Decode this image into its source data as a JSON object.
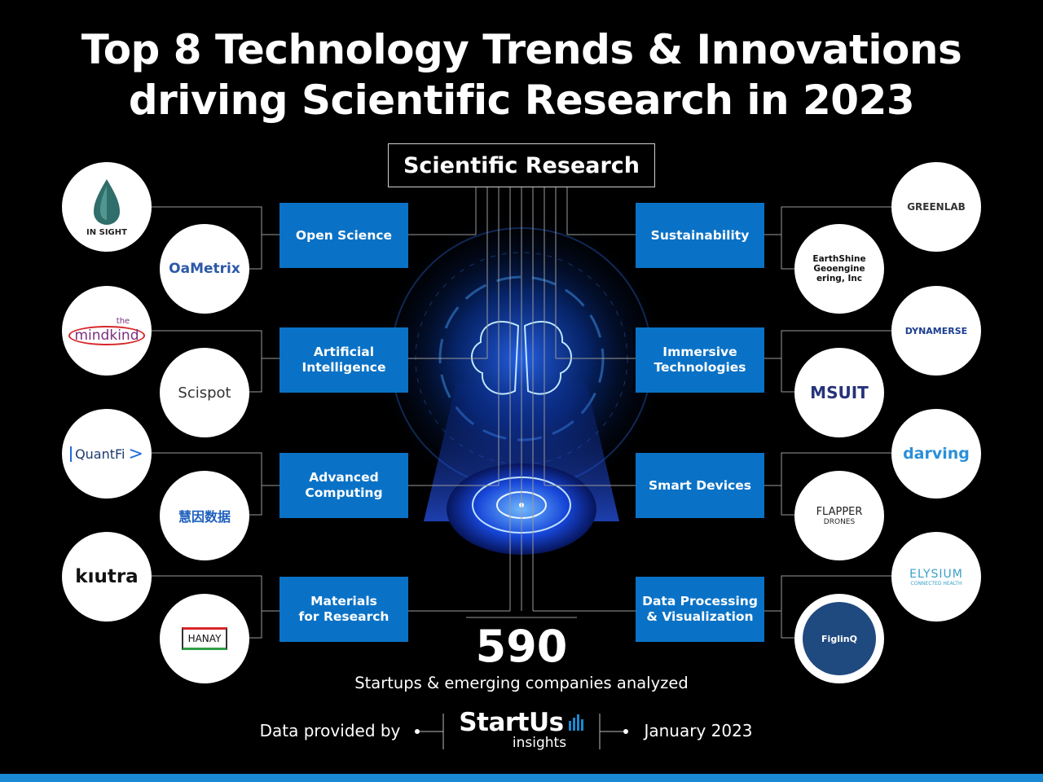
{
  "title": {
    "line1": "Top 8 Technology Trends & Innovations",
    "line2": "driving Scientific Research in 2023"
  },
  "center_label": "Scientific Research",
  "trends": [
    {
      "label": "Open Science"
    },
    {
      "label": "Artificial\nIntelligence"
    },
    {
      "label": "Advanced\nComputing"
    },
    {
      "label": "Materials\nfor Research"
    },
    {
      "label": "Sustainability"
    },
    {
      "label": "Immersive\nTechnologies"
    },
    {
      "label": "Smart Devices"
    },
    {
      "label": "Data Processing\n& Visualization"
    }
  ],
  "logos": {
    "insight": "IN SIGHT",
    "oametrix": "OaMetrix",
    "mindkind_the": "the",
    "mindkind_name": "mindkind",
    "scispot": "Scispot",
    "quantfi": "QuantFi",
    "huiyin": "慧因数据",
    "kiutra": "kıutra",
    "hanay": "HANAY",
    "greenlab": "GREENLAB",
    "earthshine": "EarthShine Geoengine ering, Inc",
    "dynamerse": "DYNAMERSE",
    "msuit": "MSUIT",
    "darving": "darving",
    "flapper": "FLAPPER",
    "flapper_sub": "DRONES",
    "elysium": "ELYSIUM",
    "elysium_sub": "CONNECTED HEALTH",
    "figlinq": "FiglinQ"
  },
  "count": "590",
  "count_caption": "Startups & emerging companies analyzed",
  "footer": {
    "provided_by": "Data provided by",
    "brand": "StartUs",
    "brand_sub": "insights",
    "date": "January 2023"
  },
  "colors": {
    "trend_box": "#0a72c6",
    "accent": "#1a8ad4",
    "background": "#000000"
  }
}
